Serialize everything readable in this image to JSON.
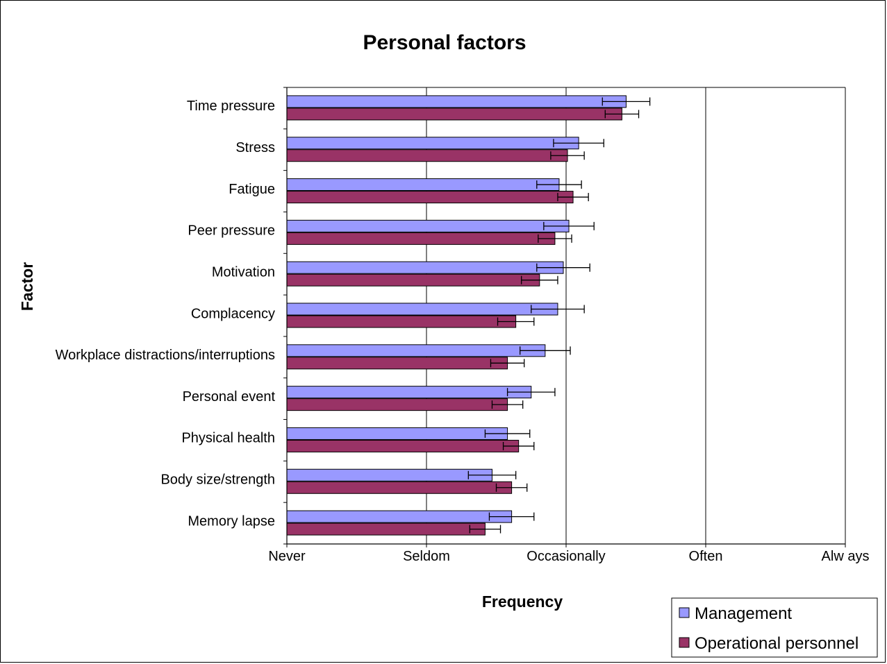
{
  "chart_data": {
    "type": "bar",
    "orientation": "horizontal",
    "title": "Personal factors",
    "xlabel": "Frequency",
    "ylabel": "Factor",
    "x_ticks": [
      "Never",
      "Seldom",
      "Occasionally",
      "Often",
      "Alw ays"
    ],
    "xlim": [
      1,
      5
    ],
    "grid": true,
    "legend_position": "bottom-right",
    "categories": [
      "Time pressure",
      "Stress",
      "Fatigue",
      "Peer pressure",
      "Motivation",
      "Complacency",
      "Workplace distractions/interruptions",
      "Personal event",
      "Physical health",
      "Body size/strength",
      "Memory lapse"
    ],
    "series": [
      {
        "name": "Management",
        "color": "#9999ff",
        "values": [
          3.43,
          3.09,
          2.95,
          3.02,
          2.98,
          2.94,
          2.85,
          2.75,
          2.58,
          2.47,
          2.61
        ],
        "error": [
          0.17,
          0.18,
          0.16,
          0.18,
          0.19,
          0.19,
          0.18,
          0.17,
          0.16,
          0.17,
          0.16
        ]
      },
      {
        "name": "Operational personnel",
        "color": "#993366",
        "values": [
          3.4,
          3.01,
          3.05,
          2.92,
          2.81,
          2.64,
          2.58,
          2.58,
          2.66,
          2.61,
          2.42
        ],
        "error": [
          0.12,
          0.12,
          0.11,
          0.12,
          0.13,
          0.13,
          0.12,
          0.11,
          0.11,
          0.11,
          0.11
        ]
      }
    ]
  }
}
